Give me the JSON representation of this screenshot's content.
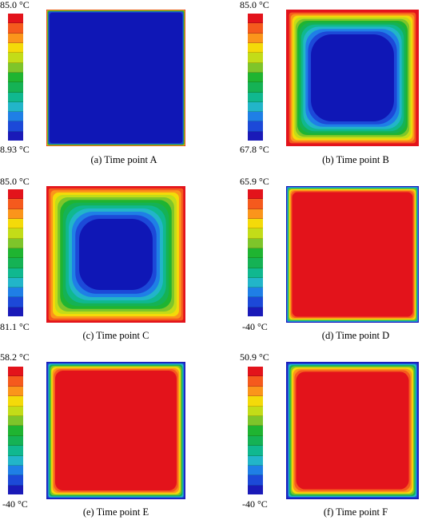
{
  "legend_colors": [
    "#e3131b",
    "#f55a1d",
    "#fb951b",
    "#f4da09",
    "#c3dc18",
    "#7ec52a",
    "#1fb431",
    "#15b255",
    "#10b88f",
    "#22b5c9",
    "#1f7fe6",
    "#1c49d8",
    "#1a1ab8"
  ],
  "panels": [
    {
      "max_label": "85.0 °C",
      "min_label": "8.93 °C",
      "caption": "(a) Time point A",
      "field": {
        "center": "#0f17b6",
        "rings": [
          {
            "color": "#e3131b",
            "frac": 0.004
          },
          {
            "color": "#f4da09",
            "frac": 0.004
          },
          {
            "color": "#1fb431",
            "frac": 0.006
          },
          {
            "color": "#1c49d8",
            "frac": 0.008
          }
        ]
      }
    },
    {
      "max_label": "85.0 °C",
      "min_label": "67.8 °C",
      "caption": "(b) Time point B",
      "field": {
        "center": "#0f17b6",
        "rings": [
          {
            "color": "#e3131b",
            "frac": 0.022
          },
          {
            "color": "#f55a1d",
            "frac": 0.012
          },
          {
            "color": "#fb951b",
            "frac": 0.012
          },
          {
            "color": "#f4da09",
            "frac": 0.012
          },
          {
            "color": "#c3dc18",
            "frac": 0.013
          },
          {
            "color": "#7ec52a",
            "frac": 0.013
          },
          {
            "color": "#1fb431",
            "frac": 0.014
          },
          {
            "color": "#15b255",
            "frac": 0.015
          },
          {
            "color": "#10b88f",
            "frac": 0.016
          },
          {
            "color": "#22b5c9",
            "frac": 0.017
          },
          {
            "color": "#1f7fe6",
            "frac": 0.019
          },
          {
            "color": "#1c49d8",
            "frac": 0.022
          }
        ]
      }
    },
    {
      "max_label": "85.0 °C",
      "min_label": "81.1 °C",
      "caption": "(c) Time point C",
      "field": {
        "center": "#0f17b6",
        "rings": [
          {
            "color": "#e3131b",
            "frac": 0.016
          },
          {
            "color": "#f55a1d",
            "frac": 0.015
          },
          {
            "color": "#fb951b",
            "frac": 0.016
          },
          {
            "color": "#f4da09",
            "frac": 0.017
          },
          {
            "color": "#c3dc18",
            "frac": 0.018
          },
          {
            "color": "#7ec52a",
            "frac": 0.019
          },
          {
            "color": "#1fb431",
            "frac": 0.02
          },
          {
            "color": "#15b255",
            "frac": 0.021
          },
          {
            "color": "#10b88f",
            "frac": 0.022
          },
          {
            "color": "#22b5c9",
            "frac": 0.023
          },
          {
            "color": "#1f7fe6",
            "frac": 0.025
          },
          {
            "color": "#1c49d8",
            "frac": 0.028
          }
        ]
      }
    },
    {
      "max_label": "65.9 °C",
      "min_label": "-40 °C",
      "caption": "(d) Time point D",
      "field": {
        "center": "#e3131b",
        "rings": [
          {
            "color": "#1a1ab8",
            "frac": 0.006
          },
          {
            "color": "#1f7fe6",
            "frac": 0.005
          },
          {
            "color": "#10b88f",
            "frac": 0.006
          },
          {
            "color": "#7ec52a",
            "frac": 0.006
          },
          {
            "color": "#f4da09",
            "frac": 0.007
          },
          {
            "color": "#fb951b",
            "frac": 0.007
          },
          {
            "color": "#f55a1d",
            "frac": 0.008
          }
        ]
      }
    },
    {
      "max_label": "58.2 °C",
      "min_label": "-40 °C",
      "caption": "(e) Time point E",
      "field": {
        "center": "#e3131b",
        "rings": [
          {
            "color": "#1a1ab8",
            "frac": 0.008
          },
          {
            "color": "#1c49d8",
            "frac": 0.006
          },
          {
            "color": "#22b5c9",
            "frac": 0.007
          },
          {
            "color": "#15b255",
            "frac": 0.007
          },
          {
            "color": "#7ec52a",
            "frac": 0.008
          },
          {
            "color": "#f4da09",
            "frac": 0.009
          },
          {
            "color": "#fb951b",
            "frac": 0.009
          },
          {
            "color": "#f55a1d",
            "frac": 0.01
          }
        ]
      }
    },
    {
      "max_label": "50.9 °C",
      "min_label": "-40 °C",
      "caption": "(f) Time point F",
      "field": {
        "center": "#e3131b",
        "rings": [
          {
            "color": "#1a1ab8",
            "frac": 0.01
          },
          {
            "color": "#1c49d8",
            "frac": 0.007
          },
          {
            "color": "#22b5c9",
            "frac": 0.008
          },
          {
            "color": "#15b255",
            "frac": 0.008
          },
          {
            "color": "#7ec52a",
            "frac": 0.009
          },
          {
            "color": "#f4da09",
            "frac": 0.01
          },
          {
            "color": "#fb951b",
            "frac": 0.011
          },
          {
            "color": "#f55a1d",
            "frac": 0.012
          }
        ]
      }
    }
  ]
}
